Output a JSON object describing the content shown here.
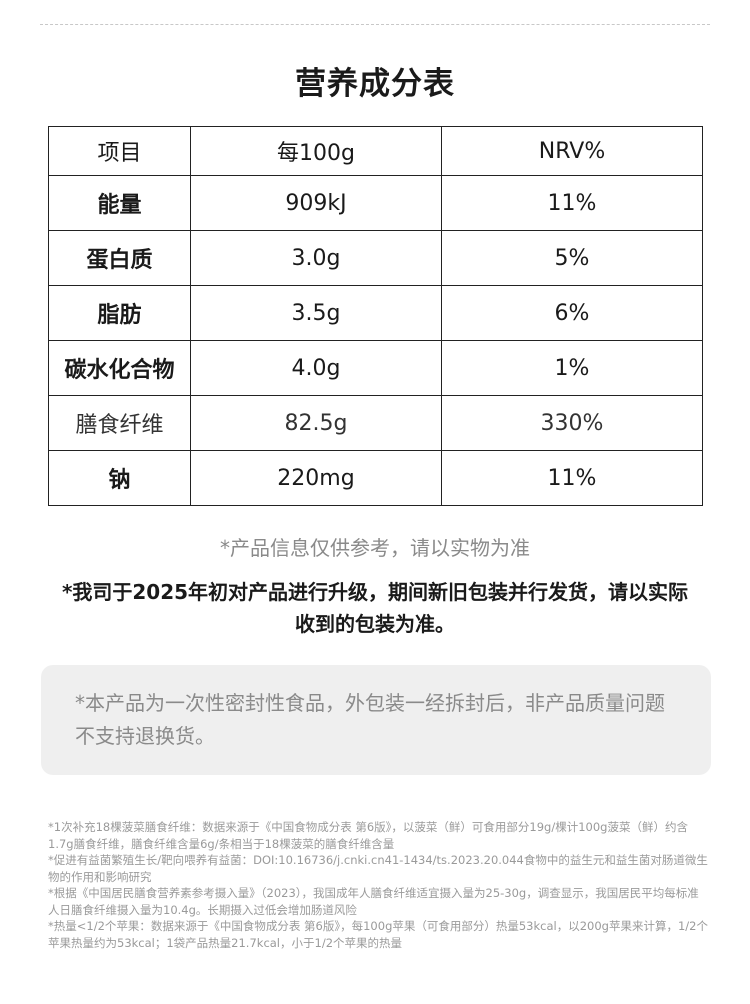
{
  "title": "营养成分表",
  "table": {
    "headers": [
      "项目",
      "每100g",
      "NRV%"
    ],
    "rows": [
      {
        "name": "能量",
        "per100g": "909kJ",
        "nrv": "11%"
      },
      {
        "name": "蛋白质",
        "per100g": "3.0g",
        "nrv": "5%"
      },
      {
        "name": "脂肪",
        "per100g": "3.5g",
        "nrv": "6%"
      },
      {
        "name": "碳水化合物",
        "per100g": "4.0g",
        "nrv": "1%"
      },
      {
        "name": "膳食纤维",
        "per100g": "82.5g",
        "nrv": "330%"
      },
      {
        "name": "钠",
        "per100g": "220mg",
        "nrv": "11%"
      }
    ]
  },
  "notes": {
    "info_ref": "*产品信息仅供参考，请以实物为准",
    "packaging_upgrade": "*我司于2025年初对产品进行升级，期间新旧包装并行发货，请以实际收到的包装为准。",
    "sealed_notice": "*本产品为一次性密封性食品，外包装一经拆封后，非产品质量问题不支持退换货。"
  },
  "footnotes": [
    "*1次补充18棵菠菜膳食纤维：数据来源于《中国食物成分表 第6版》，以菠菜（鲜）可食用部分19g/棵计100g菠菜（鲜）约含1.7g膳食纤维，膳食纤维含量6g/条相当于18棵菠菜的膳食纤维含量",
    "*促进有益菌繁殖生长/靶向喂养有益菌：DOI:10.16736/j.cnki.cn41-1434/ts.2023.20.044食物中的益生元和益生菌对肠道微生物的作用和影响研究",
    "*根据《中国居民膳食营养素参考摄入量》（2023），我国成年人膳食纤维适宜摄入量为25-30g，调查显示，我国居民平均每标准人日膳食纤维摄入量为10.4g。长期摄入过低会增加肠道风险",
    "*热量<1/2个苹果：数据来源于《中国食物成分表 第6版》，每100g苹果（可食用部分）热量53kcal，以200g苹果来计算，1/2个苹果热量约为53kcal；1袋产品热量21.7kcal，小于1/2个苹果的热量"
  ]
}
